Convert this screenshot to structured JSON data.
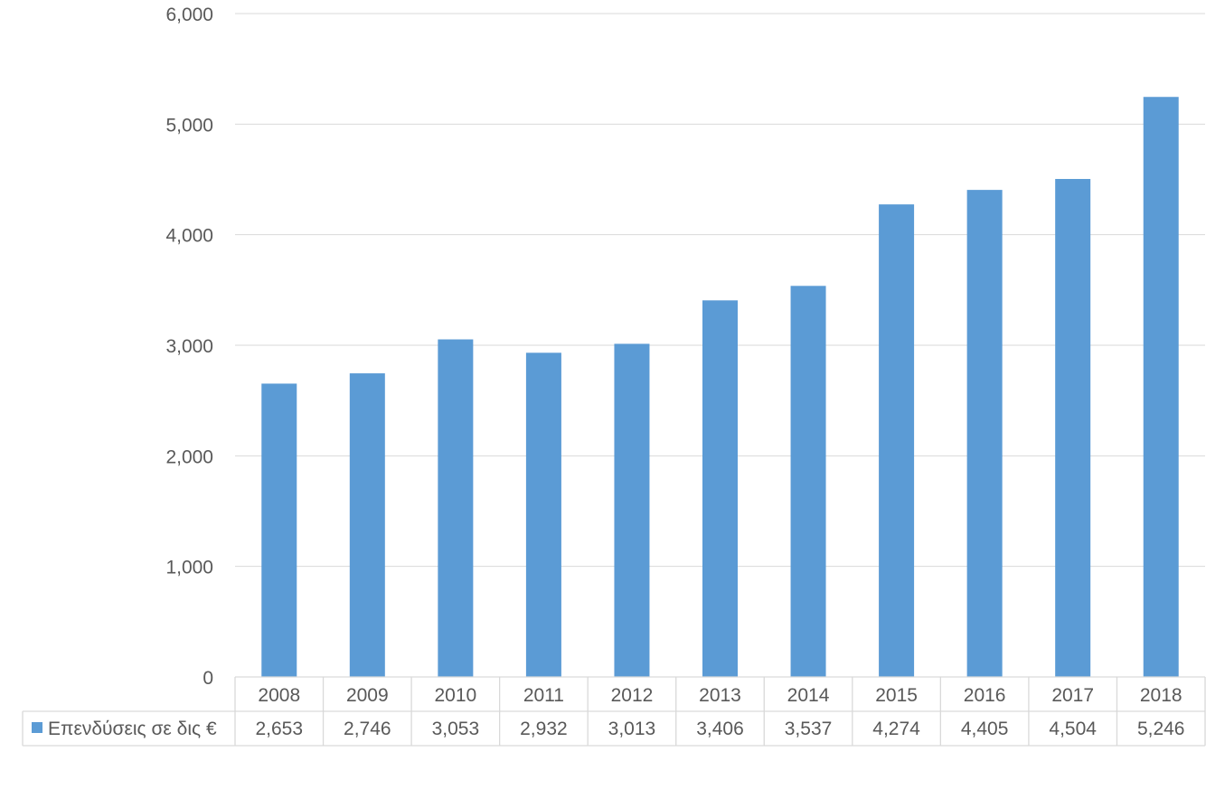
{
  "chart_data": {
    "type": "bar",
    "categories": [
      "2008",
      "2009",
      "2010",
      "2011",
      "2012",
      "2013",
      "2014",
      "2015",
      "2016",
      "2017",
      "2018"
    ],
    "series": [
      {
        "name": "Επενδύσεις σε δις €",
        "values": [
          2653,
          2746,
          3053,
          2932,
          3013,
          3406,
          3537,
          4274,
          4405,
          4504,
          5246
        ],
        "labels": [
          "2,653",
          "2,746",
          "3,053",
          "2,932",
          "3,013",
          "3,406",
          "3,537",
          "4,274",
          "4,405",
          "4,504",
          "5,246"
        ],
        "color": "#5B9BD5"
      }
    ],
    "yticks": [
      "0",
      "1,000",
      "2,000",
      "3,000",
      "4,000",
      "5,000",
      "6,000"
    ],
    "ylim": [
      0,
      6000
    ],
    "title": "",
    "xlabel": "",
    "ylabel": "",
    "grid": true,
    "legend": "data table",
    "gridline_color": "#D9D9D9",
    "text_color": "#595959"
  }
}
